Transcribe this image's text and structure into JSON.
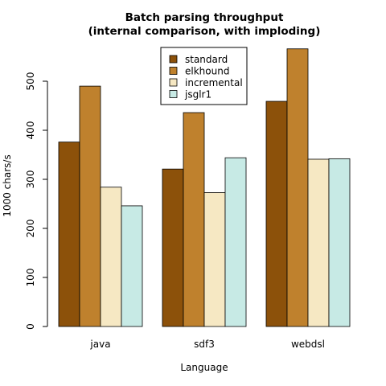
{
  "chart_data": {
    "type": "bar",
    "title": "Batch parsing throughput",
    "subtitle": "(internal comparison, with imploding)",
    "xlabel": "Language",
    "ylabel": "1000 chars/s",
    "categories": [
      "java",
      "sdf3",
      "webdsl"
    ],
    "series": [
      {
        "name": "standard",
        "color": "#8C510A",
        "values": [
          376,
          321,
          459
        ]
      },
      {
        "name": "elkhound",
        "color": "#BF812D",
        "values": [
          490,
          436,
          566
        ]
      },
      {
        "name": "incremental",
        "color": "#F6E8C3",
        "values": [
          284,
          273,
          341
        ]
      },
      {
        "name": "jsglr1",
        "color": "#C7EAE5",
        "values": [
          246,
          344,
          342
        ]
      }
    ],
    "ylim": [
      0,
      566
    ],
    "yticks": [
      0,
      100,
      200,
      300,
      400,
      500
    ],
    "legend_position": "top-center",
    "grid": false
  }
}
